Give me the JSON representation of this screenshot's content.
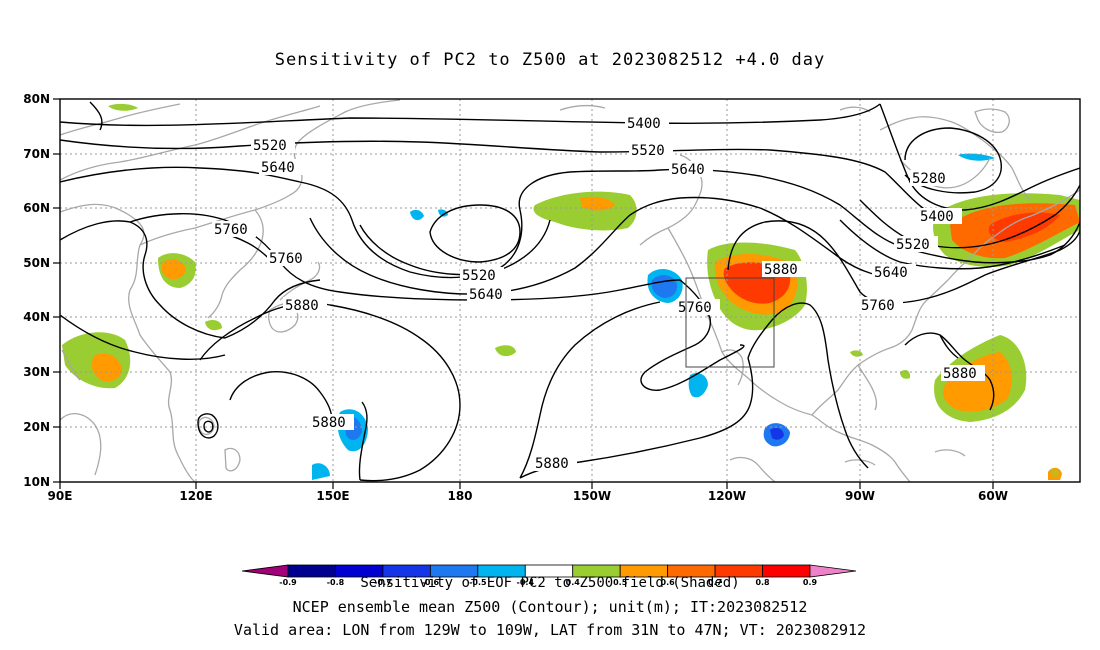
{
  "title": "Sensitivity of PC2 to Z500 at 2023082512 +4.0 day",
  "axes": {
    "lat_ticks": [
      "10N",
      "20N",
      "30N",
      "40N",
      "50N",
      "60N",
      "70N",
      "80N"
    ],
    "lon_ticks": [
      "90E",
      "120E",
      "150E",
      "180",
      "150W",
      "120W",
      "90W",
      "60W"
    ]
  },
  "contour_labels": [
    {
      "text": "5400",
      "id": "a"
    },
    {
      "text": "5520",
      "id": "b"
    },
    {
      "text": "5520",
      "id": "c"
    },
    {
      "text": "5640",
      "id": "d"
    },
    {
      "text": "5640",
      "id": "e"
    },
    {
      "text": "5760",
      "id": "f"
    },
    {
      "text": "5760",
      "id": "g"
    },
    {
      "text": "5880",
      "id": "h"
    },
    {
      "text": "5520",
      "id": "i"
    },
    {
      "text": "5640",
      "id": "j"
    },
    {
      "text": "5280",
      "id": "k"
    },
    {
      "text": "5400",
      "id": "l"
    },
    {
      "text": "5520",
      "id": "m"
    },
    {
      "text": "5640",
      "id": "n"
    },
    {
      "text": "5760",
      "id": "o"
    },
    {
      "text": "5880",
      "id": "p"
    },
    {
      "text": "5760",
      "id": "q"
    },
    {
      "text": "5880",
      "id": "r"
    },
    {
      "text": "5880",
      "id": "s"
    },
    {
      "text": "5880",
      "id": "t"
    }
  ],
  "colorbar": {
    "ticks": [
      "-0.9",
      "-0.8",
      "-0.7",
      "-0.6",
      "-0.5",
      "-0.4",
      "0.4",
      "0.5",
      "0.6",
      "0.7",
      "0.8",
      "0.9"
    ],
    "colors": [
      "#a0007a",
      "#000090",
      "#0000d0",
      "#1535e8",
      "#1e78f0",
      "#00b4f0",
      "#ffffff",
      "#9acd32",
      "#ff9a00",
      "#ff6a00",
      "#ff3a00",
      "#ff0000",
      "#ee82c8"
    ]
  },
  "captions": {
    "line1": "Sensitivity of EOF PC2 to Z500 field (Shaded)",
    "line2": "NCEP ensemble mean Z500 (Contour); unit(m); IT:2023082512",
    "line3": "Valid area: LON from 129W to 109W, LAT from 31N to 47N; VT: 2023082912"
  },
  "shading": {
    "positive_colors": [
      "#9acd32",
      "#ff9a00",
      "#ff6a00",
      "#ff3a00"
    ],
    "negative_colors": [
      "#00b4f0",
      "#1e78f0",
      "#1535e8"
    ]
  }
}
